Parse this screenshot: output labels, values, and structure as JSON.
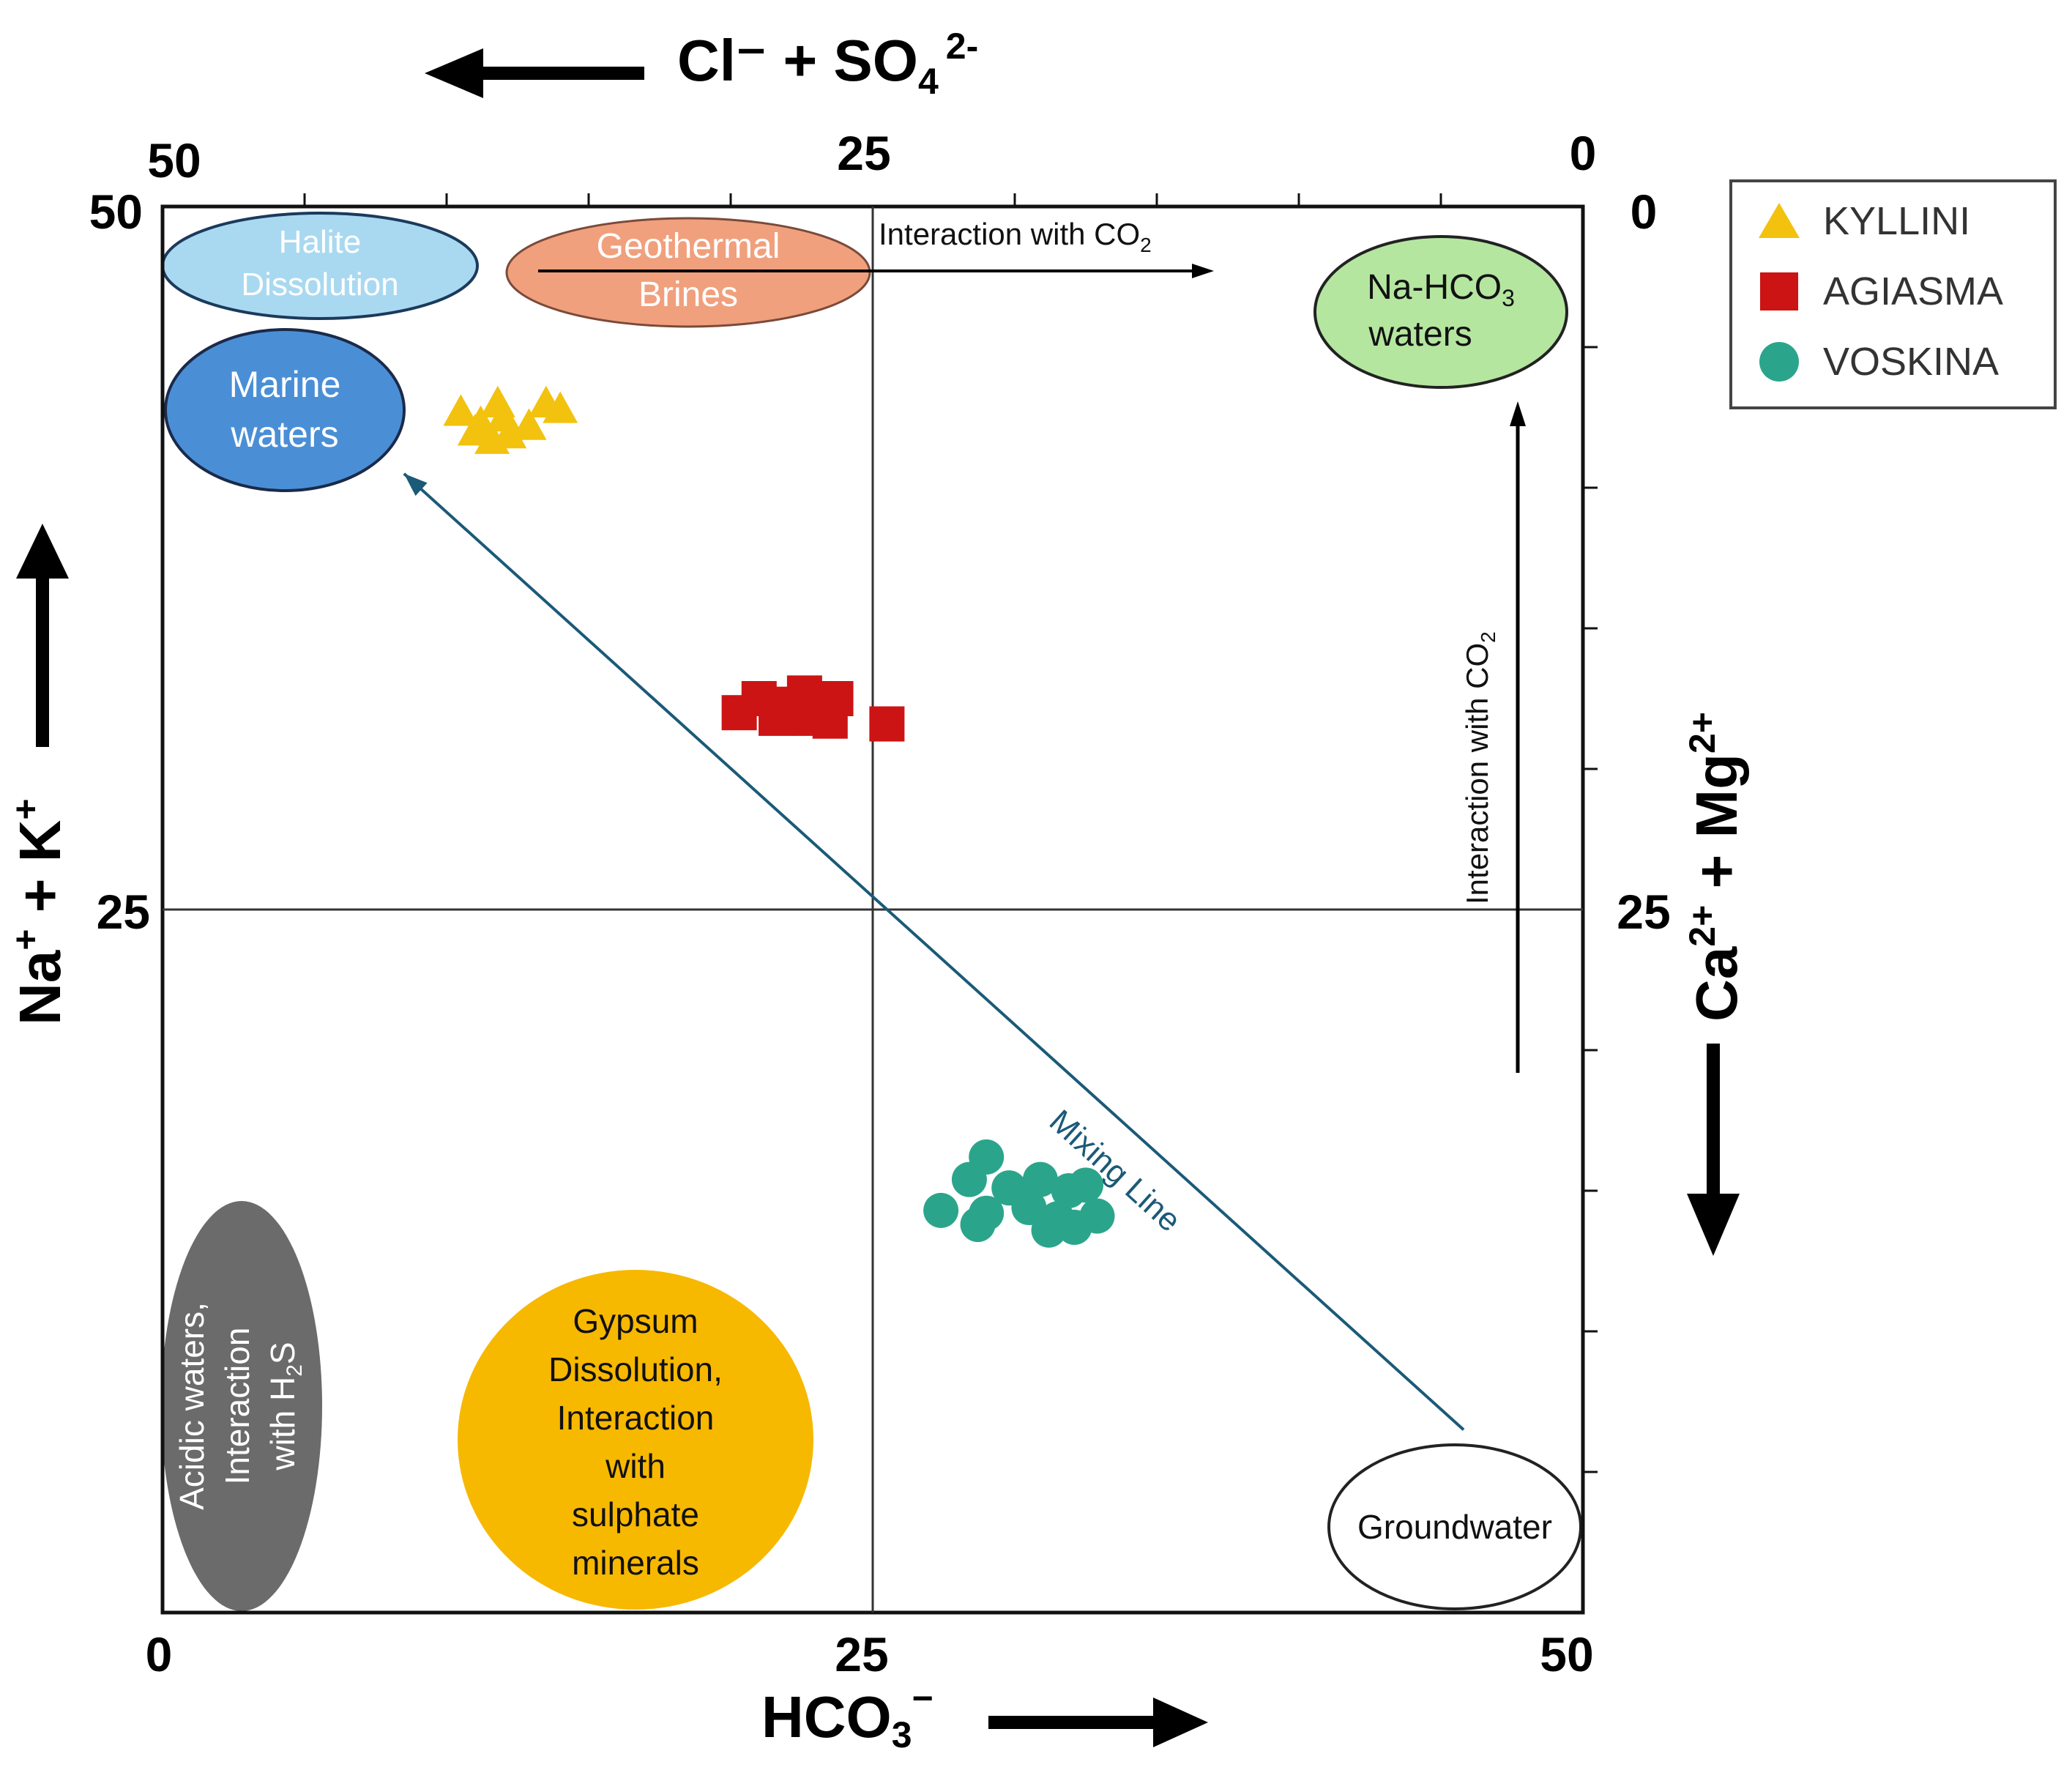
{
  "chart_data": {
    "type": "scatter",
    "title": "",
    "axes": {
      "top": {
        "label": "Cl⁻ + SO",
        "sub": "4",
        "sup": "2-",
        "ticks": [
          "50",
          "25",
          "0"
        ],
        "range": [
          50,
          0
        ]
      },
      "bottom": {
        "label": "HCO",
        "sub": "3",
        "sup": "−",
        "ticks": [
          "0",
          "25",
          "50"
        ],
        "range": [
          0,
          50
        ]
      },
      "left": {
        "label_na": "Na",
        "label_na_sup": "+",
        "label_plus": " + K",
        "label_k_sup": "+",
        "ticks": [
          "50",
          "25"
        ],
        "range": [
          0,
          50
        ]
      },
      "right": {
        "label_ca": "Ca",
        "label_ca_sup": "2+",
        "label_mg": " + Mg",
        "label_mg_sup": "2+",
        "ticks": [
          "0",
          "25"
        ],
        "range": [
          50,
          0
        ]
      }
    },
    "series": [
      {
        "name": "KYLLINI",
        "marker": "triangle",
        "color": "#f2c20f",
        "points": [
          [
            10.5,
            42.7
          ],
          [
            11.2,
            42.3
          ],
          [
            11.8,
            43.0
          ],
          [
            12.0,
            42.5
          ],
          [
            11.6,
            41.7
          ],
          [
            12.2,
            41.9
          ],
          [
            13.5,
            43.0
          ],
          [
            14.0,
            42.8
          ],
          [
            12.9,
            42.2
          ],
          [
            11.0,
            42.0
          ]
        ]
      },
      {
        "name": "AGIASMA",
        "marker": "square",
        "color": "#cc1414",
        "points": [
          [
            20.3,
            32.0
          ],
          [
            21.0,
            32.5
          ],
          [
            21.9,
            32.3
          ],
          [
            22.6,
            32.7
          ],
          [
            23.2,
            32.1
          ],
          [
            23.7,
            32.5
          ],
          [
            21.6,
            31.8
          ],
          [
            22.8,
            31.8
          ],
          [
            23.5,
            31.7
          ],
          [
            25.5,
            31.6
          ]
        ]
      },
      {
        "name": "VOSKINA",
        "marker": "circle",
        "color": "#2aa58b",
        "points": [
          [
            29.0,
            16.2
          ],
          [
            28.4,
            15.4
          ],
          [
            29.8,
            15.1
          ],
          [
            30.9,
            15.4
          ],
          [
            31.9,
            15.0
          ],
          [
            32.5,
            15.2
          ],
          [
            27.4,
            14.3
          ],
          [
            29.0,
            14.2
          ],
          [
            30.5,
            14.4
          ],
          [
            31.5,
            14.0
          ],
          [
            32.9,
            14.1
          ],
          [
            28.7,
            13.8
          ],
          [
            31.2,
            13.6
          ],
          [
            32.1,
            13.7
          ]
        ]
      }
    ],
    "legend": {
      "position": "top-right",
      "entries": [
        "KYLLINI",
        "AGIASMA",
        "VOSKINA"
      ]
    },
    "gridlines": {
      "center_cross": true,
      "value": 25
    },
    "zones": {
      "halite": [
        "Halite",
        "Dissolution"
      ],
      "brines": [
        "Geothermal",
        "Brines"
      ],
      "nahco3": [
        "Na-HCO",
        "3",
        "waters"
      ],
      "marine": [
        "Marine",
        "waters"
      ],
      "acidic": [
        "Acidic waters,",
        "Interaction",
        "with H",
        "2",
        "S"
      ],
      "gypsum": [
        "Gypsum",
        "Dissolution,",
        "Interaction",
        "with",
        "sulphate",
        "minerals"
      ],
      "groundwater": [
        "Groundwater"
      ]
    },
    "annotations": {
      "co2_horizontal": {
        "text": "Interaction with CO",
        "sub": "2"
      },
      "co2_vertical": {
        "text": "Interaction with CO",
        "sub": "2"
      },
      "mixing_line": {
        "text": "Mixing Line",
        "from": [
          45.8,
          6.5
        ],
        "to": [
          8.5,
          40.5
        ],
        "color": "#1b5a78"
      }
    }
  }
}
